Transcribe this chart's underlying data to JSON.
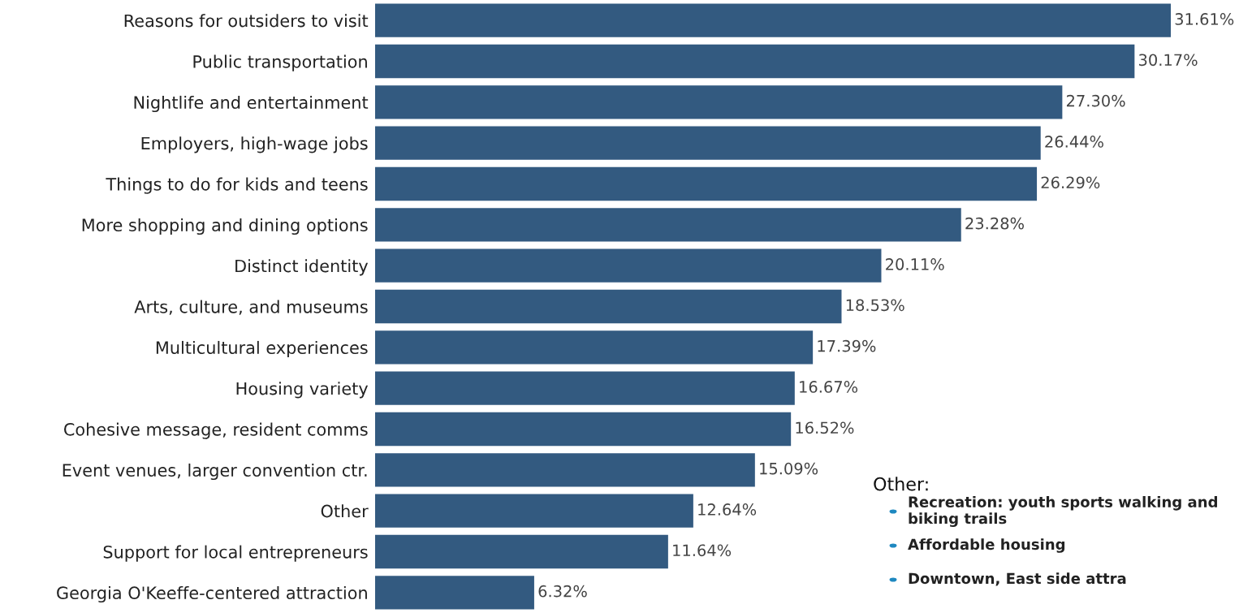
{
  "chart_data": {
    "type": "bar",
    "orientation": "horizontal",
    "color": "#335a80",
    "categories": [
      "Reasons for outsiders to visit",
      "Public transportation",
      "Nightlife and entertainment",
      "Employers, high-wage jobs",
      "Things to do for kids and teens",
      "More shopping and dining options",
      "Distinct identity",
      "Arts, culture, and museums",
      "Multicultural experiences",
      "Housing variety",
      "Cohesive message, resident comms",
      "Event venues, larger convention ctr.",
      "Other",
      "Support for local entrepreneurs",
      "Georgia O'Keeffe-centered attraction"
    ],
    "values": [
      31.61,
      30.17,
      27.3,
      26.44,
      26.29,
      23.28,
      20.11,
      18.53,
      17.39,
      16.67,
      16.52,
      15.09,
      12.64,
      11.64,
      6.32
    ],
    "value_labels": [
      "31.61%",
      "30.17%",
      "27.30%",
      "26.44%",
      "26.29%",
      "23.28%",
      "20.11%",
      "18.53%",
      "17.39%",
      "16.67%",
      "16.52%",
      "15.09%",
      "12.64%",
      "11.64%",
      "6.32%"
    ],
    "annotations": [
      "Other:",
      "Recreation: youth sports walking and biking trails",
      "Affordable housing",
      "Downtown, East side attra"
    ],
    "grid": false,
    "legend": false
  }
}
